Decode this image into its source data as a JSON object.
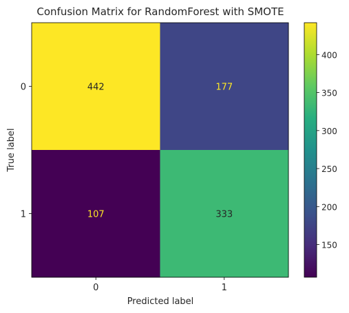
{
  "chart_data": {
    "type": "heatmap",
    "title": "Confusion Matrix for RandomForest with SMOTE",
    "xlabel": "Predicted label",
    "ylabel": "True label",
    "x_categories": [
      "0",
      "1"
    ],
    "y_categories": [
      "0",
      "1"
    ],
    "matrix": [
      [
        442,
        177
      ],
      [
        107,
        333
      ]
    ],
    "colormap": "viridis",
    "colorbar": {
      "ticks": [
        "150",
        "200",
        "250",
        "300",
        "350",
        "400"
      ],
      "tick_values": [
        150,
        200,
        250,
        300,
        350,
        400
      ],
      "range": [
        107,
        442
      ]
    },
    "grid": false
  }
}
